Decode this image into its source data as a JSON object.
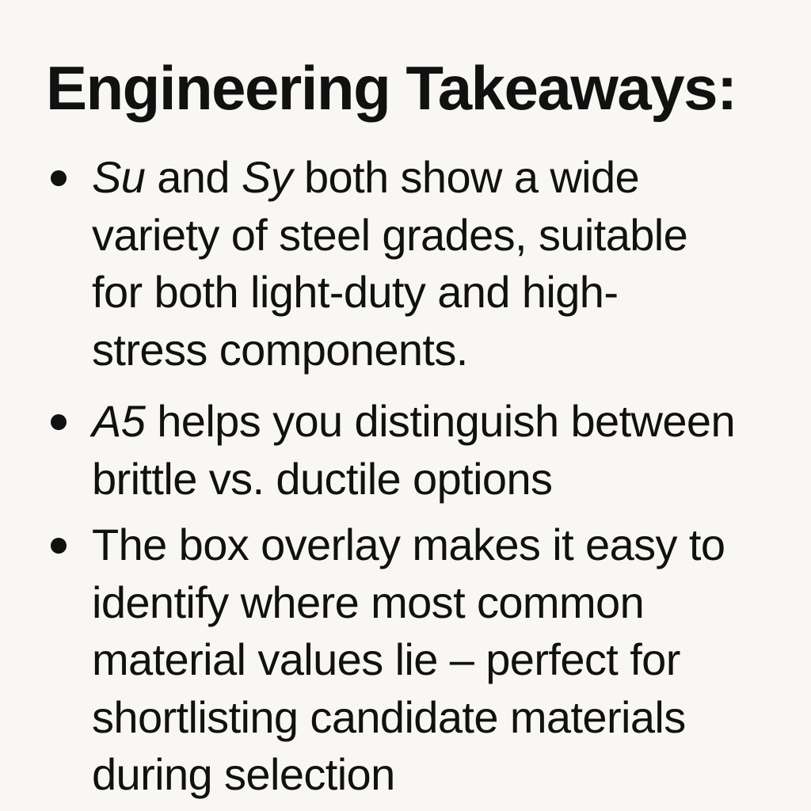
{
  "title": "Engineering Takeaways:",
  "bullets": [
    {
      "lines": [
        {
          "em1": "Su",
          "t1": " and ",
          "em2": "Sy",
          "t2": " both show a wide"
        },
        {
          "text": "variety of steel grades, suitable"
        },
        {
          "text": "for both light-duty and high-"
        },
        {
          "text": "stress components."
        }
      ]
    },
    {
      "lines": [
        {
          "em1": "A5",
          "t1": " helps you distinguish between"
        },
        {
          "text": "brittle vs. ductile options"
        }
      ]
    },
    {
      "lines": [
        {
          "text": "The box overlay makes it easy to"
        },
        {
          "text": "identify where most common"
        },
        {
          "text": "material values lie – perfect for"
        },
        {
          "text": "shortlisting candidate materials"
        },
        {
          "text": "during selection"
        }
      ]
    }
  ]
}
